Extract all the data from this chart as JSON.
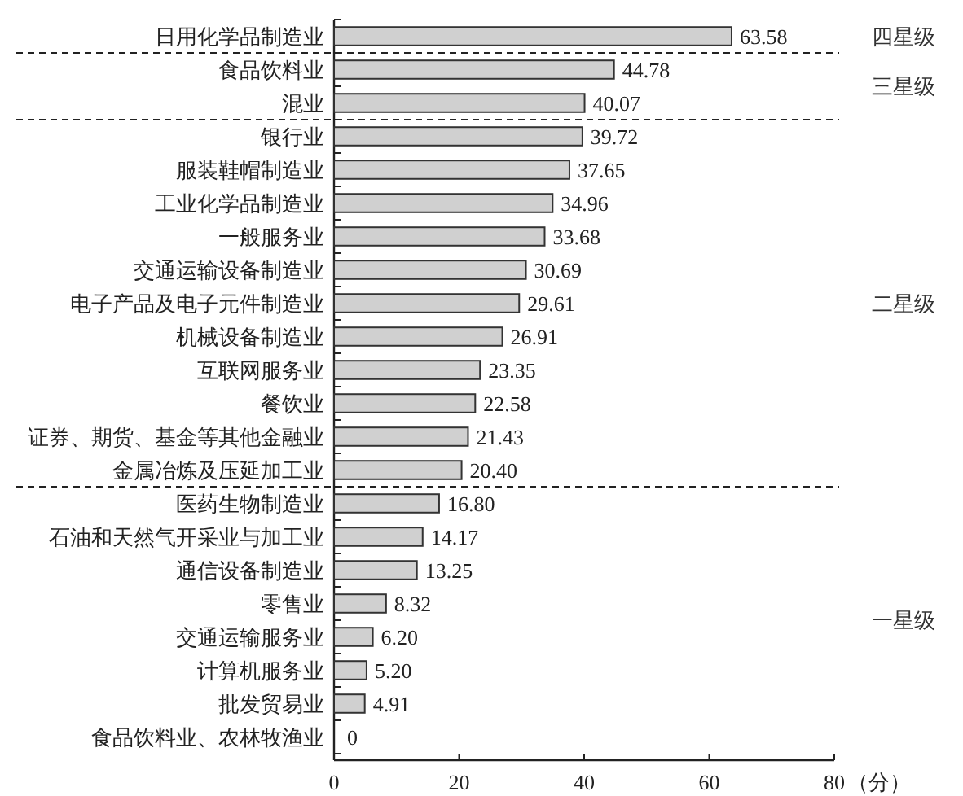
{
  "chart_data": {
    "type": "bar",
    "orientation": "horizontal",
    "xlabel": "（分）",
    "categories": [
      "日用化学品制造业",
      "食品饮料业",
      "混业",
      "银行业",
      "服装鞋帽制造业",
      "工业化学品制造业",
      "一般服务业",
      "交通运输设备制造业",
      "电子产品及电子元件制造业",
      "机械设备制造业",
      "互联网服务业",
      "餐饮业",
      "证券、期货、基金等其他金融业",
      "金属冶炼及压延加工业",
      "医药生物制造业",
      "石油和天然气开采业与加工业",
      "通信设备制造业",
      "零售业",
      "交通运输服务业",
      "计算机服务业",
      "批发贸易业",
      "食品饮料业、农林牧渔业"
    ],
    "values": [
      63.58,
      44.78,
      40.07,
      39.72,
      37.65,
      34.96,
      33.68,
      30.69,
      29.61,
      26.91,
      23.35,
      22.58,
      21.43,
      20.4,
      16.8,
      14.17,
      13.25,
      8.32,
      6.2,
      5.2,
      4.91,
      0
    ],
    "value_labels": [
      "63.58",
      "44.78",
      "40.07",
      "39.72",
      "37.65",
      "34.96",
      "33.68",
      "30.69",
      "29.61",
      "26.91",
      "23.35",
      "22.58",
      "21.43",
      "20.40",
      "16.80",
      "14.17",
      "13.25",
      "8.32",
      "6.20",
      "5.20",
      "4.91",
      "0"
    ],
    "color": "#d0d0d0",
    "xlim": [
      0,
      80
    ],
    "xticks": [
      0,
      20,
      40,
      60,
      80
    ],
    "annotations": [
      "四星级",
      "三星级",
      "二星级",
      "一星级"
    ]
  }
}
